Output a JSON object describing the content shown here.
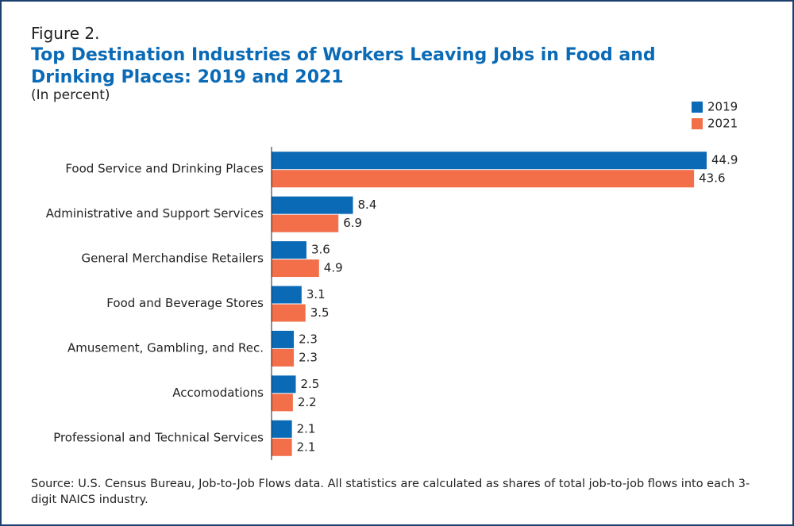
{
  "chart_data": {
    "type": "bar",
    "orientation": "horizontal",
    "figure_label": "Figure 2.",
    "title": "Top Destination Industries of Workers Leaving Jobs in Food and Drinking Places: 2019 and 2021",
    "subtitle": "(In percent)",
    "categories": [
      "Food Service and Drinking Places",
      "Administrative and Support Services",
      "General Merchandise Retailers",
      "Food and Beverage Stores",
      "Amusement, Gambling, and Rec.",
      "Accomodations",
      "Professional and Technical Services"
    ],
    "series": [
      {
        "name": "2019",
        "color": "#0a6ab6",
        "values": [
          44.9,
          8.4,
          3.6,
          3.1,
          2.3,
          2.5,
          2.1
        ]
      },
      {
        "name": "2021",
        "color": "#f26f4a",
        "values": [
          43.6,
          6.9,
          4.9,
          3.5,
          2.3,
          2.2,
          2.1
        ]
      }
    ],
    "legend": "top-right",
    "source": "Source: U.S. Census Bureau, Job-to-Job Flows data. All statistics are calculated as shares of total job-to-job flows into each 3-digit NAICS industry."
  }
}
